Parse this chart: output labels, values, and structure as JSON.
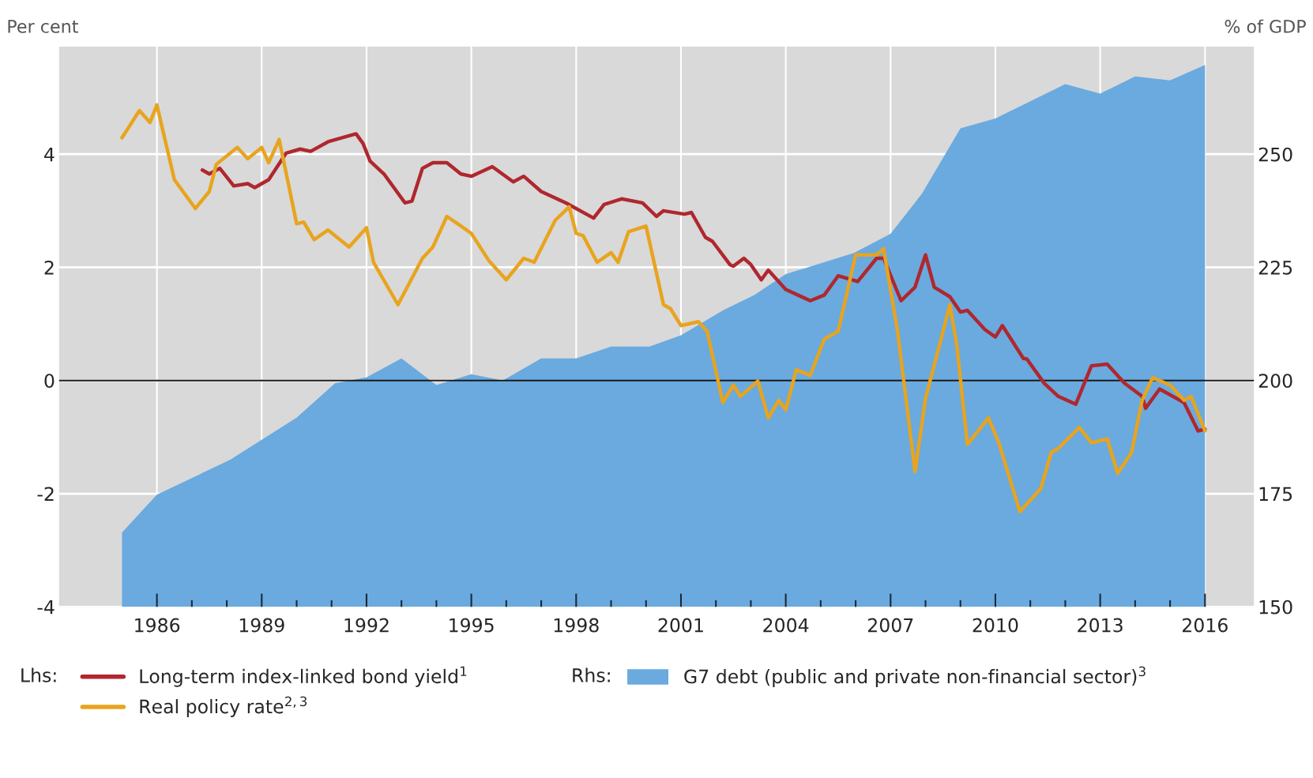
{
  "chart_data": {
    "type": "line",
    "ylabel": "Per cent",
    "y2label": "% of GDP",
    "xlim": [
      1983.2,
      2017.4
    ],
    "ylim": [
      -4,
      5.9
    ],
    "y2lim": [
      150,
      273.75
    ],
    "xticks": [
      1986,
      {
        "value": 1987,
        "label": null
      },
      {
        "value": 1988,
        "label": null
      },
      1989,
      {
        "value": 1990,
        "label": null
      },
      {
        "value": 1991,
        "label": null
      },
      1992,
      {
        "value": 1993,
        "label": null
      },
      {
        "value": 1994,
        "label": null
      },
      1995,
      {
        "value": 1996,
        "label": null
      },
      {
        "value": 1997,
        "label": null
      },
      1998,
      {
        "value": 1999,
        "label": null
      },
      {
        "value": 2000,
        "label": null
      },
      2001,
      {
        "value": 2002,
        "label": null
      },
      {
        "value": 2003,
        "label": null
      },
      2004,
      {
        "value": 2005,
        "label": null
      },
      {
        "value": 2006,
        "label": null
      },
      2007,
      {
        "value": 2008,
        "label": null
      },
      {
        "value": 2009,
        "label": null
      },
      2010,
      {
        "value": 2011,
        "label": null
      },
      {
        "value": 2012,
        "label": null
      },
      2013,
      {
        "value": 2014,
        "label": null
      },
      {
        "value": 2015,
        "label": null
      },
      2016
    ],
    "yticks": [
      -4,
      -2,
      0,
      2,
      4
    ],
    "y2ticks": [
      150,
      175,
      200,
      225,
      250
    ],
    "grid": true,
    "legend": "bottom",
    "ref_lines": [
      {
        "axis": "y",
        "value": 0,
        "color": "#1a1a1a"
      }
    ],
    "annotations": [
      "Lhs:",
      "Rhs:"
    ],
    "series": [
      {
        "name": "G7 debt (public and private non-financial sector)$^{3}$",
        "type": "area",
        "axis": "y2",
        "color": "#6aaadf",
        "x": [
          1985.0,
          1986.0,
          1988.1,
          1990.0,
          1991.1,
          1992.0,
          1993.0,
          1994.0,
          1995.0,
          1995.9,
          1997.0,
          1998.0,
          1999.0,
          2000.1,
          2001.0,
          2002.2,
          2003.1,
          2004.0,
          2005.95,
          2007.0,
          2007.9,
          2009.0,
          2010.0,
          2012.0,
          2013.0,
          2014.0,
          2015.0,
          2016.0
        ],
        "values": [
          166.4,
          174.8,
          182.5,
          191.8,
          199.4,
          200.7,
          204.9,
          199.0,
          201.4,
          200.0,
          204.9,
          204.9,
          207.5,
          207.5,
          210.0,
          215.5,
          218.9,
          223.5,
          228.2,
          232.4,
          241.3,
          255.7,
          257.9,
          265.5,
          263.4,
          267.2,
          266.3,
          269.7
        ]
      },
      {
        "name": "Long-term index-linked bond yield$^{1}$",
        "color": "#b0272e",
        "x": [
          1987.3,
          1987.5,
          1987.8,
          1988.2,
          1988.6,
          1988.8,
          1989.2,
          1989.7,
          1990.1,
          1990.4,
          1990.9,
          1991.3,
          1991.7,
          1991.9,
          1992.1,
          1992.5,
          1993.1,
          1993.3,
          1993.6,
          1993.9,
          1994.3,
          1994.7,
          1995.0,
          1995.6,
          1996.2,
          1996.5,
          1997.0,
          1997.7,
          1998.5,
          1998.8,
          1999.3,
          1999.9,
          2000.3,
          2000.5,
          2001.1,
          2001.3,
          2001.7,
          2001.9,
          2002.4,
          2002.5,
          2002.8,
          2003.0,
          2003.3,
          2003.5,
          2004.0,
          2004.7,
          2005.1,
          2005.5,
          2006.06,
          2006.6,
          2006.8,
          2007.3,
          2007.7,
          2008.0,
          2008.25,
          2008.7,
          2009.0,
          2009.2,
          2009.7,
          2010.0,
          2010.2,
          2010.8,
          2010.9,
          2011.4,
          2011.8,
          2012.3,
          2012.75,
          2013.2,
          2013.7,
          2014.2,
          2014.3,
          2014.7,
          2015.4,
          2015.8,
          2016.0
        ],
        "values": [
          3.72,
          3.65,
          3.75,
          3.44,
          3.48,
          3.41,
          3.55,
          4.02,
          4.09,
          4.05,
          4.22,
          4.29,
          4.36,
          4.19,
          3.88,
          3.65,
          3.14,
          3.17,
          3.75,
          3.85,
          3.85,
          3.65,
          3.61,
          3.78,
          3.51,
          3.61,
          3.34,
          3.14,
          2.87,
          3.11,
          3.21,
          3.14,
          2.9,
          3.0,
          2.94,
          2.97,
          2.53,
          2.46,
          2.05,
          2.02,
          2.16,
          2.05,
          1.78,
          1.95,
          1.61,
          1.41,
          1.51,
          1.85,
          1.75,
          2.16,
          2.16,
          1.41,
          1.65,
          2.22,
          1.65,
          1.48,
          1.21,
          1.24,
          0.9,
          0.77,
          0.97,
          0.39,
          0.38,
          -0.05,
          -0.28,
          -0.42,
          0.26,
          0.29,
          -0.05,
          -0.28,
          -0.49,
          -0.15,
          -0.39,
          -0.89,
          -0.86
        ]
      },
      {
        "name": "Real policy rate$^{2,3}$",
        "color": "#e8a41e",
        "x": [
          1985.0,
          1985.5,
          1985.8,
          1986.0,
          1986.5,
          1987.1,
          1987.5,
          1987.7,
          1988.3,
          1988.6,
          1989.0,
          1989.2,
          1989.5,
          1990.0,
          1990.2,
          1990.5,
          1990.9,
          1991.5,
          1992.0,
          1992.2,
          1992.9,
          1993.6,
          1993.9,
          1994.3,
          1994.7,
          1995.0,
          1995.5,
          1996.0,
          1996.5,
          1996.8,
          1997.4,
          1997.8,
          1998.0,
          1998.2,
          1998.6,
          1999.0,
          1999.2,
          1999.5,
          2000.0,
          2000.5,
          2000.7,
          2001.0,
          2001.5,
          2001.75,
          2002.2,
          2002.5,
          2002.7,
          2003.2,
          2003.5,
          2003.8,
          2004.0,
          2004.3,
          2004.7,
          2005.1,
          2005.5,
          2006.0,
          2006.6,
          2006.8,
          2007.2,
          2007.7,
          2008.0,
          2008.7,
          2008.9,
          2009.2,
          2009.8,
          2010.1,
          2010.7,
          2011.3,
          2011.6,
          2011.8,
          2012.4,
          2012.75,
          2013.2,
          2013.5,
          2013.9,
          2014.2,
          2014.5,
          2015.0,
          2015.4,
          2015.6,
          2016.0
        ],
        "values": [
          4.29,
          4.77,
          4.56,
          4.87,
          3.55,
          3.04,
          3.34,
          3.82,
          4.12,
          3.92,
          4.12,
          3.85,
          4.26,
          2.77,
          2.8,
          2.49,
          2.66,
          2.36,
          2.7,
          2.09,
          1.34,
          2.16,
          2.36,
          2.9,
          2.73,
          2.6,
          2.12,
          1.78,
          2.16,
          2.09,
          2.83,
          3.07,
          2.6,
          2.56,
          2.09,
          2.26,
          2.09,
          2.63,
          2.73,
          1.34,
          1.27,
          0.97,
          1.04,
          0.87,
          -0.39,
          -0.08,
          -0.28,
          -0.01,
          -0.66,
          -0.35,
          -0.52,
          0.19,
          0.09,
          0.73,
          0.87,
          2.22,
          2.22,
          2.33,
          0.87,
          -1.61,
          -0.32,
          1.34,
          0.6,
          -1.13,
          -0.66,
          -1.1,
          -2.32,
          -1.91,
          -1.27,
          -1.2,
          -0.83,
          -1.1,
          -1.03,
          -1.64,
          -1.27,
          -0.35,
          0.05,
          -0.08,
          -0.35,
          -0.28,
          -0.89
        ]
      }
    ]
  }
}
